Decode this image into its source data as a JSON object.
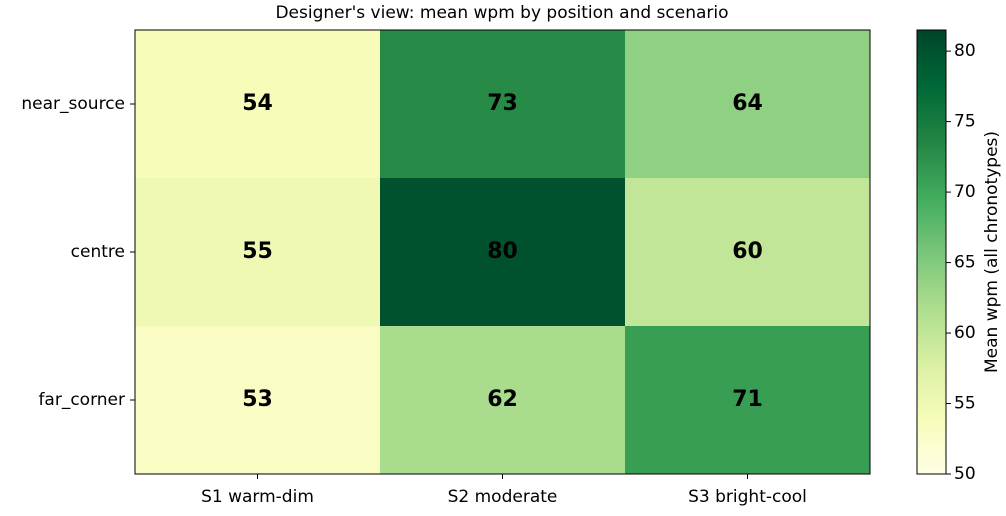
{
  "chart_data": {
    "type": "heatmap",
    "title": "Designer's view: mean wpm by position and scenario",
    "x_categories": [
      "S1 warm-dim",
      "S2 moderate",
      "S3 bright-cool"
    ],
    "y_categories": [
      "near_source",
      "centre",
      "far_corner"
    ],
    "values": [
      [
        54,
        73,
        64
      ],
      [
        55,
        80,
        60
      ],
      [
        53,
        62,
        71
      ]
    ],
    "colormap": "YlGn",
    "colorbar": {
      "label": "Mean wpm (all chronotypes)",
      "lim": [
        50,
        81.5
      ],
      "ticks": [
        50,
        55,
        60,
        65,
        70,
        75,
        80
      ]
    }
  }
}
